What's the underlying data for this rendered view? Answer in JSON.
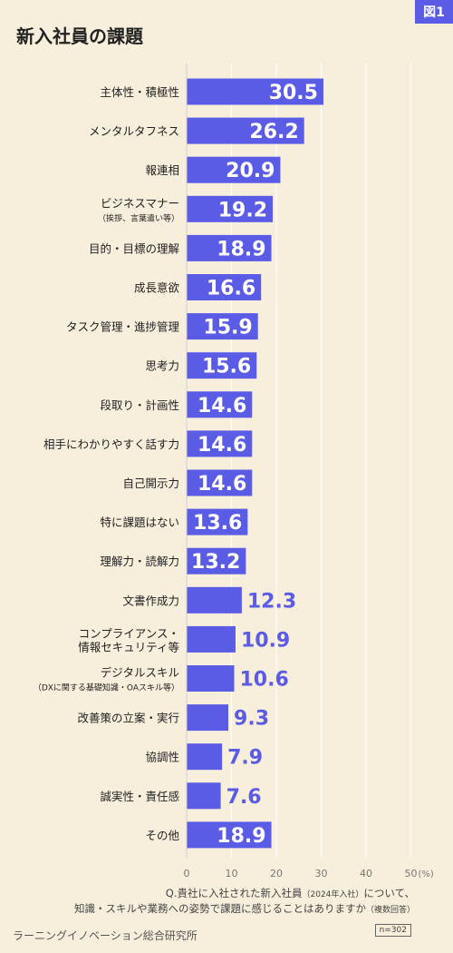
{
  "figure_badge": "図1",
  "title": "新入社員の課題",
  "chart_data": {
    "type": "bar",
    "orientation": "horizontal",
    "categories": [
      "主体性・積極性",
      "メンタルタフネス",
      "報連相",
      "ビジネスマナー",
      "目的・目標の理解",
      "成長意欲",
      "タスク管理・進捗管理",
      "思考力",
      "段取り・計画性",
      "相手にわかりやすく話す力",
      "自己開示力",
      "特に課題はない",
      "理解力・読解力",
      "文書作成力",
      "コンプライアンス・",
      "デジタルスキル",
      "改善策の立案・実行",
      "協調性",
      "誠実性・責任感",
      "その他"
    ],
    "category_sublabels": [
      "",
      "",
      "",
      "（挨拶、言葉遣い等）",
      "",
      "",
      "",
      "",
      "",
      "",
      "",
      "",
      "",
      "",
      "情報セキュリティ等",
      "（DXに関する基礎知識・OAスキル等）",
      "",
      "",
      "",
      ""
    ],
    "values": [
      30.5,
      26.2,
      20.9,
      19.2,
      18.9,
      16.6,
      15.9,
      15.6,
      14.6,
      14.6,
      14.6,
      13.6,
      13.2,
      12.3,
      10.9,
      10.6,
      9.3,
      7.9,
      7.6,
      18.9
    ],
    "value_labels": [
      "30.5",
      "26.2",
      "20.9",
      "19.2",
      "18.9",
      "16.6",
      "15.9",
      "15.6",
      "14.6",
      "14.6",
      "14.6",
      "13.6",
      "13.2",
      "12.3",
      "10.9",
      "10.6",
      "9.3",
      "7.9",
      "7.6",
      "18.9"
    ],
    "xlim": [
      0,
      50
    ],
    "xticks": [
      0,
      10,
      20,
      30,
      40,
      50
    ],
    "xtick_labels": [
      "0",
      "10",
      "20",
      "30",
      "40",
      "50"
    ],
    "x_unit": "(%)",
    "grid": true,
    "bar_color": "#5b5ce6",
    "grid_color": "#ffffff"
  },
  "note_line1_a": "Q.貴社に入社された新入社員",
  "note_line1_b": "（2024年入社）",
  "note_line1_c": "について、",
  "note_line2_a": "知識・スキルや業務への姿勢で課題に感じることはありますか",
  "note_line2_b": "（複数回答）",
  "sample_size": "n=302",
  "source": "ラーニングイノベーション総合研究所"
}
